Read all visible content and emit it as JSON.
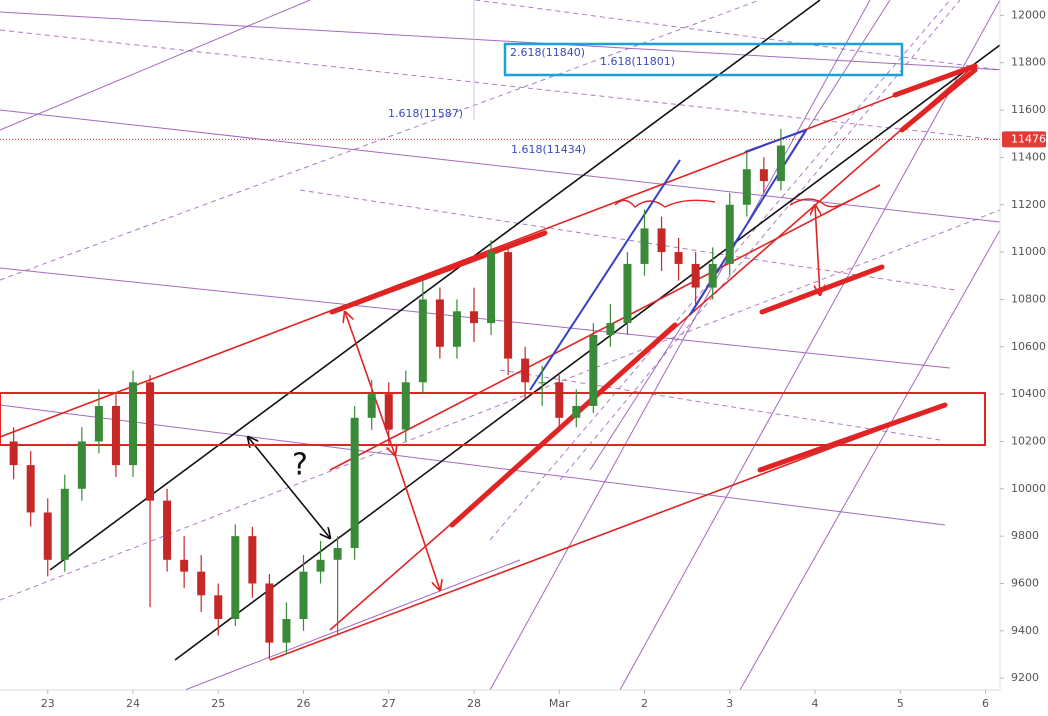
{
  "chart_data": {
    "type": "candlestick",
    "x": [
      -0.4,
      -0.2,
      0,
      0.2,
      0.4,
      0.6,
      0.8,
      1.0,
      1.2,
      1.4,
      1.6,
      1.8,
      2.0,
      2.2,
      2.4,
      2.6,
      2.8,
      3.0,
      3.2,
      3.4,
      3.6,
      3.8,
      4.0,
      4.2,
      4.4,
      4.6,
      4.8,
      5.0,
      5.2,
      5.4,
      5.6,
      5.8,
      6.0,
      6.2,
      6.4,
      6.6,
      6.8,
      7.0,
      7.2,
      7.4,
      7.6,
      7.8,
      8.0,
      8.2,
      8.4,
      8.6
    ],
    "open": [
      10200,
      10100,
      9900,
      9700,
      10000,
      10200,
      10350,
      10100,
      10450,
      9950,
      9700,
      9650,
      9550,
      9450,
      9800,
      9600,
      9350,
      9450,
      9650,
      9700,
      9750,
      10300,
      10400,
      10250,
      10450,
      10800,
      10600,
      10750,
      10700,
      11000,
      10550,
      10450,
      10450,
      10300,
      10350,
      10650,
      10700,
      10950,
      11100,
      11000,
      10950,
      10850,
      10950,
      11200,
      11350,
      11300
    ],
    "high": [
      10260,
      10160,
      9960,
      10060,
      10260,
      10420,
      10400,
      10500,
      10480,
      10000,
      9800,
      9720,
      9600,
      9850,
      9840,
      9640,
      9520,
      9720,
      9780,
      9800,
      10350,
      10460,
      10450,
      10500,
      10880,
      10850,
      10800,
      10850,
      11050,
      11020,
      10600,
      10520,
      10480,
      10420,
      10700,
      10780,
      11000,
      11180,
      11150,
      11060,
      11000,
      11020,
      11250,
      11420,
      11400,
      11520
    ],
    "low": [
      10040,
      9840,
      9630,
      9650,
      9950,
      10150,
      10050,
      10050,
      9500,
      9650,
      9580,
      9480,
      9380,
      9420,
      9540,
      9280,
      9300,
      9400,
      9600,
      9380,
      9700,
      10250,
      10180,
      10200,
      10400,
      10550,
      10550,
      10620,
      10650,
      10480,
      10380,
      10350,
      10250,
      10260,
      10320,
      10600,
      10650,
      10900,
      10920,
      10880,
      10780,
      10800,
      10900,
      11150,
      11250,
      11260
    ],
    "close": [
      10100,
      9900,
      9700,
      10000,
      10200,
      10350,
      10100,
      10450,
      9950,
      9700,
      9650,
      9550,
      9450,
      9800,
      9600,
      9350,
      9450,
      9650,
      9700,
      9750,
      10300,
      10400,
      10250,
      10450,
      10800,
      10600,
      10750,
      10700,
      11000,
      10550,
      10450,
      10450,
      10300,
      10350,
      10650,
      10700,
      10950,
      11100,
      11000,
      10950,
      10850,
      10950,
      11200,
      11350,
      11300,
      11450
    ],
    "up_color": "#3a8a3a",
    "down_color": "#c62828",
    "xlim": [
      -0.56,
      11.17
    ],
    "xticks": [
      {
        "value": 0,
        "label": "23"
      },
      {
        "value": 1,
        "label": "24"
      },
      {
        "value": 2,
        "label": "25"
      },
      {
        "value": 3,
        "label": "26"
      },
      {
        "value": 4,
        "label": "27"
      },
      {
        "value": 5,
        "label": "28"
      },
      {
        "value": 6,
        "label": "Mar"
      },
      {
        "value": 7,
        "label": "2"
      },
      {
        "value": 8,
        "label": "3"
      },
      {
        "value": 9,
        "label": "4"
      },
      {
        "value": 10,
        "label": "5"
      },
      {
        "value": 11,
        "label": "6"
      }
    ],
    "ylim": [
      9150,
      12065
    ],
    "yticks": [
      9200,
      9400,
      9600,
      9800,
      10000,
      10200,
      10400,
      10600,
      10800,
      11000,
      11200,
      11400,
      11600,
      11800,
      12000
    ],
    "last_price": 11476,
    "annotations": [
      "2.618(11840)",
      "1.618(11801)",
      "1.618(11587)",
      "1.618(11434)",
      "?"
    ],
    "grid": false
  }
}
